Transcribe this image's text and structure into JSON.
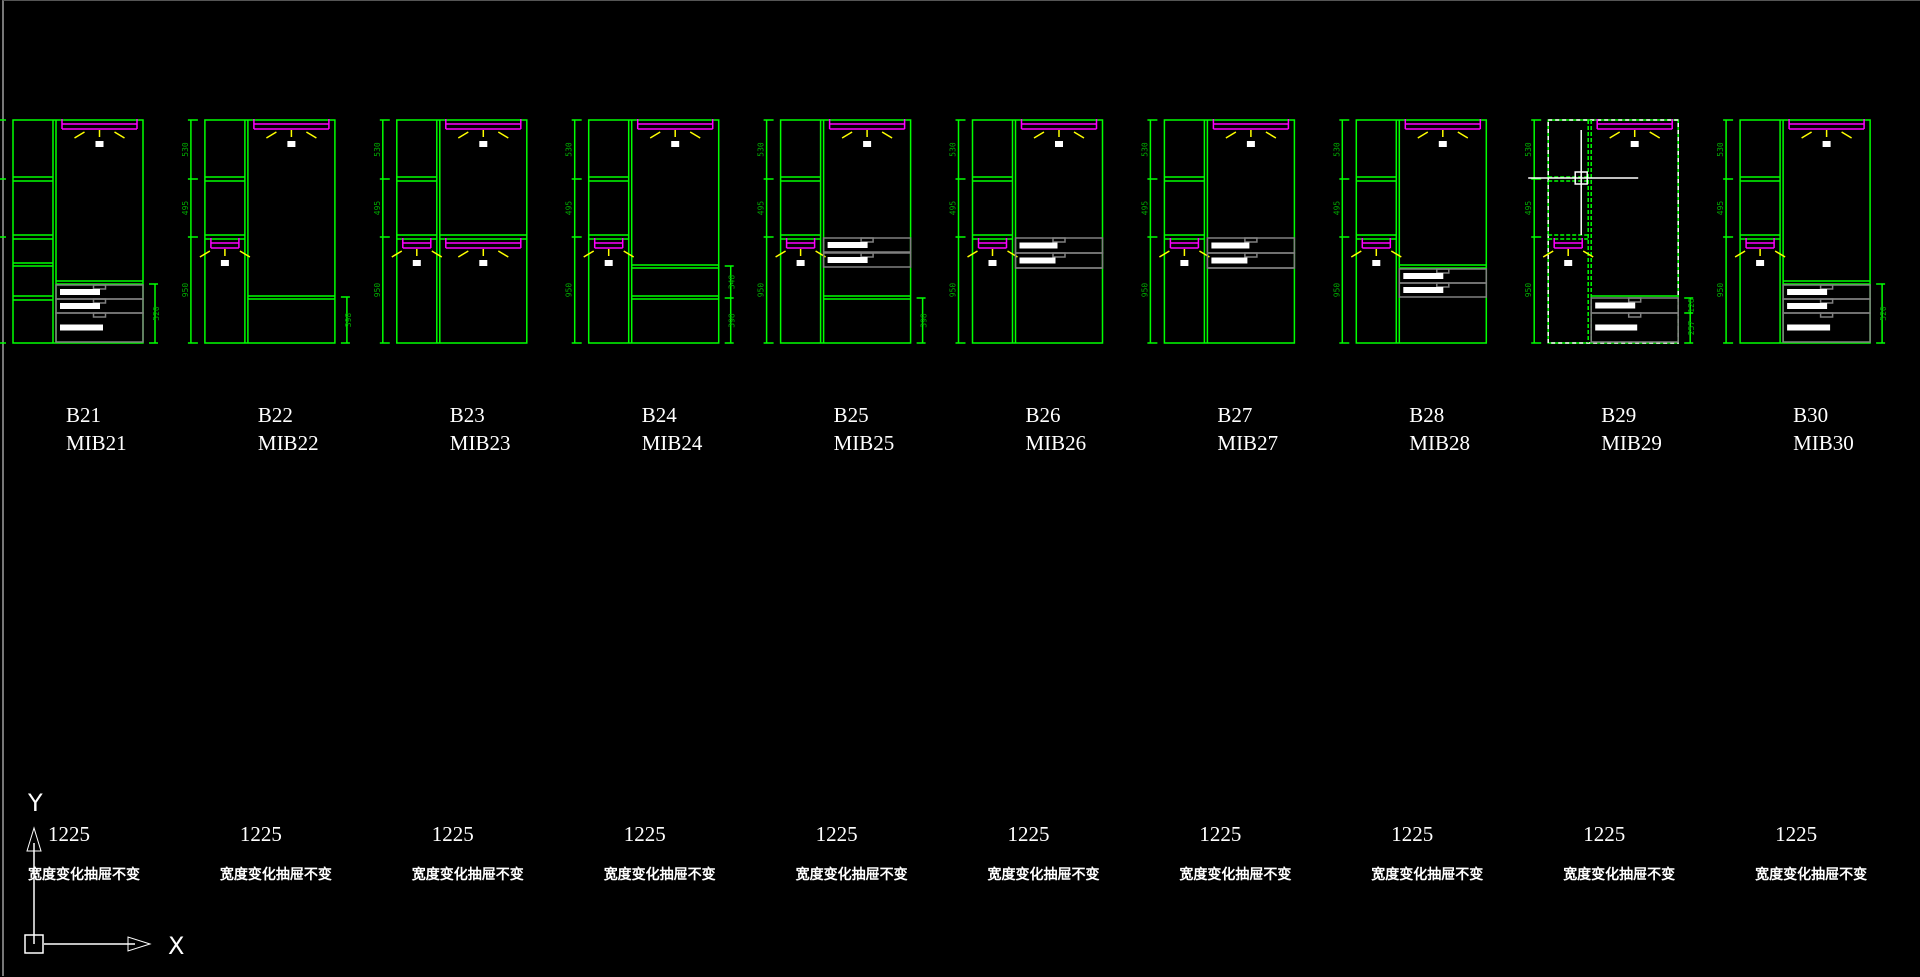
{
  "colors": {
    "background": "#000000",
    "cabinet": "#00ff00",
    "rail": "#ff00ff",
    "light": "#ffff00",
    "drawer": "#808080",
    "text": "#ffffff",
    "dimension": "#00aa00"
  },
  "left_dimensions": [
    "530",
    "495",
    "950"
  ],
  "cabinets": [
    {
      "code": "B21",
      "model": "MIB21",
      "width": "1225",
      "note": "宽度变化抽屉不变",
      "lower": "drawers3",
      "right_dims": [
        "520"
      ]
    },
    {
      "code": "B22",
      "model": "MIB22",
      "width": "1225",
      "note": "宽度变化抽屉不变",
      "lower": "shelf",
      "right_dims": [
        "398"
      ]
    },
    {
      "code": "B23",
      "model": "MIB23",
      "width": "1225",
      "note": "宽度变化抽屉不变",
      "lower": "rail",
      "right_dims": []
    },
    {
      "code": "B24",
      "model": "MIB24",
      "width": "1225",
      "note": "宽度变化抽屉不变",
      "lower": "twoshelf",
      "right_dims": [
        "348",
        "398"
      ]
    },
    {
      "code": "B25",
      "model": "MIB25",
      "width": "1225",
      "note": "宽度变化抽屉不变",
      "lower": "drawers2shelf",
      "right_dims": [
        "398"
      ]
    },
    {
      "code": "B26",
      "model": "MIB26",
      "width": "1225",
      "note": "宽度变化抽屉不变",
      "lower": "drawers2",
      "right_dims": []
    },
    {
      "code": "B27",
      "model": "MIB27",
      "width": "1225",
      "note": "宽度变化抽屉不变",
      "lower": "drawers2",
      "right_dims": []
    },
    {
      "code": "B28",
      "model": "MIB28",
      "width": "1225",
      "note": "宽度变化抽屉不变",
      "lower": "shelfdrawers",
      "right_dims": []
    },
    {
      "code": "B29",
      "model": "MIB29",
      "width": "1225",
      "note": "宽度变化抽屉不变",
      "lower": "selected",
      "right_dims": [
        "126",
        "257"
      ]
    },
    {
      "code": "B30",
      "model": "MIB30",
      "width": "1225",
      "note": "宽度变化抽屉不变",
      "lower": "drawers3",
      "right_dims": [
        "520"
      ]
    }
  ],
  "ucs": {
    "x_label": "X",
    "y_label": "Y"
  }
}
